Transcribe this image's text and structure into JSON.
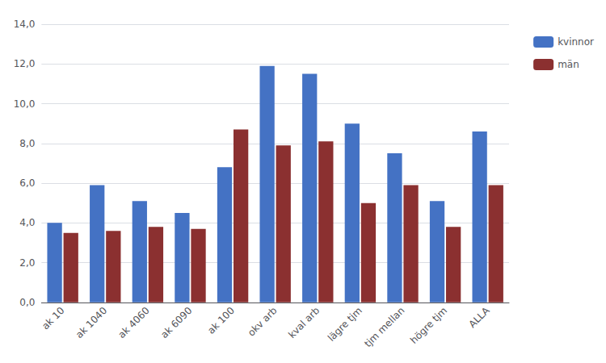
{
  "chart_data": {
    "type": "bar",
    "categories": [
      "ak 10",
      "ak 1040",
      "ak 4060",
      "ak 6090",
      "ak 100",
      "okv arb",
      "kval arb",
      "lägre tjm",
      "tjm mellan",
      "högre tjm",
      "ALLA"
    ],
    "series": [
      {
        "name": "kvinnor",
        "color": "#4472C4",
        "values": [
          4.0,
          5.9,
          5.1,
          4.5,
          6.8,
          11.9,
          11.5,
          9.0,
          7.5,
          5.1,
          8.6
        ]
      },
      {
        "name": "män",
        "color": "#8B3030",
        "values": [
          3.5,
          3.6,
          3.8,
          3.7,
          8.7,
          7.9,
          8.1,
          5.0,
          5.9,
          3.8,
          5.9
        ]
      }
    ],
    "ylim": [
      0,
      14.0
    ],
    "yticks": [
      {
        "value": 0.0,
        "label": "0,0"
      },
      {
        "value": 2.0,
        "label": "2,0"
      },
      {
        "value": 4.0,
        "label": "4,0"
      },
      {
        "value": 6.0,
        "label": "6,0"
      },
      {
        "value": 8.0,
        "label": "8,0"
      },
      {
        "value": 10.0,
        "label": "10,0"
      },
      {
        "value": 12.0,
        "label": "12,0"
      },
      {
        "value": 14.0,
        "label": "14,0"
      }
    ],
    "grid": true,
    "legend": "upper right"
  }
}
